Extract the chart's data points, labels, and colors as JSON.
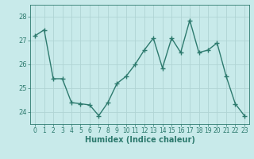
{
  "x": [
    0,
    1,
    2,
    3,
    4,
    5,
    6,
    7,
    8,
    9,
    10,
    11,
    12,
    13,
    14,
    15,
    16,
    17,
    18,
    19,
    20,
    21,
    22,
    23
  ],
  "y": [
    27.2,
    27.45,
    25.4,
    25.4,
    24.4,
    24.35,
    24.3,
    23.85,
    24.4,
    25.2,
    25.5,
    26.0,
    26.6,
    27.1,
    25.85,
    27.1,
    26.5,
    27.85,
    26.5,
    26.6,
    26.9,
    25.5,
    24.35,
    23.85
  ],
  "line_color": "#2d7a6e",
  "marker": "+",
  "marker_size": 4,
  "marker_linewidth": 1.0,
  "line_width": 1.0,
  "bg_color": "#c8eaea",
  "grid_color": "#b0d4d4",
  "tick_color": "#2d7a6e",
  "label_color": "#2d7a6e",
  "xlabel": "Humidex (Indice chaleur)",
  "xlabel_fontsize": 7,
  "yticks": [
    24,
    25,
    26,
    27,
    28
  ],
  "ylim": [
    23.5,
    28.5
  ],
  "xlim": [
    -0.5,
    23.5
  ],
  "xtick_labels": [
    "0",
    "1",
    "2",
    "3",
    "4",
    "5",
    "6",
    "7",
    "8",
    "9",
    "10",
    "11",
    "12",
    "13",
    "14",
    "15",
    "16",
    "17",
    "18",
    "19",
    "20",
    "21",
    "22",
    "23"
  ],
  "tick_fontsize": 5.5,
  "ytick_fontsize": 6.0
}
